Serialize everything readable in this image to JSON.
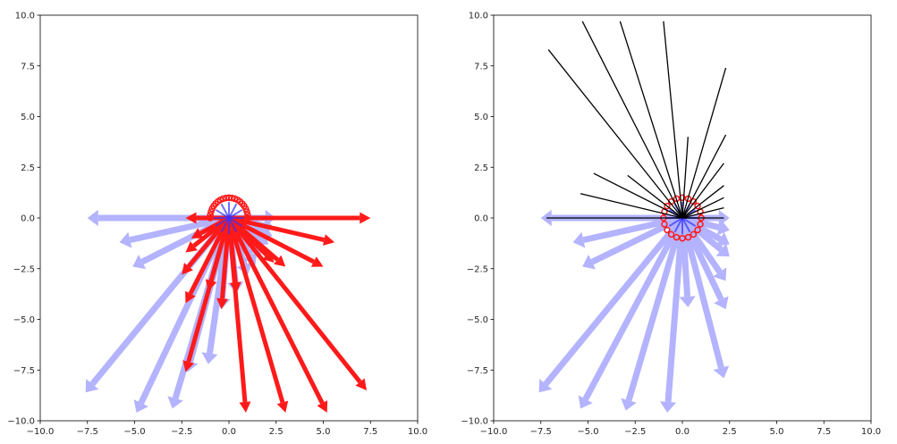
{
  "chart_data": [
    {
      "type": "quiver",
      "panel": "left",
      "xlim": [
        -10,
        10
      ],
      "ylim": [
        -10,
        10
      ],
      "xticks": [
        "−10.0",
        "−7.5",
        "−5.0",
        "−2.5",
        "0.0",
        "2.5",
        "5.0",
        "7.5",
        "10.0"
      ],
      "yticks": [
        "−10.0",
        "−7.5",
        "−5.0",
        "−2.5",
        "0.0",
        "2.5",
        "5.0",
        "7.5",
        "10.0"
      ],
      "grid": false,
      "series": [
        {
          "color": "#b3b3ff",
          "origins": [
            0,
            0
          ],
          "vectors": [
            [
              2.5,
              0.0
            ],
            [
              2.4,
              -0.5
            ],
            [
              2.3,
              -0.9
            ],
            [
              2.1,
              -1.3
            ],
            [
              1.7,
              -1.8
            ],
            [
              1.4,
              -2.3
            ],
            [
              1.0,
              -2.8
            ],
            [
              0.4,
              -3.7
            ],
            [
              -0.4,
              -4.5
            ],
            [
              -1.1,
              -7.2
            ],
            [
              -2.2,
              -7.6
            ],
            [
              -3.0,
              -9.4
            ],
            [
              -4.9,
              -9.6
            ],
            [
              -7.6,
              -8.6
            ],
            [
              -5.1,
              -2.4
            ],
            [
              -5.8,
              -1.2
            ],
            [
              -7.5,
              0.0
            ]
          ]
        },
        {
          "color": "#ff1a1a",
          "circle_markers": {
            "center": [
              0,
              0
            ],
            "radius": 1.0
          },
          "vectors": [
            [
              7.5,
              0.0
            ],
            [
              5.6,
              -1.2
            ],
            [
              5.0,
              -2.4
            ],
            [
              3.0,
              -2.4
            ],
            [
              2.4,
              -2.2
            ],
            [
              7.3,
              -8.5
            ],
            [
              5.2,
              -9.6
            ],
            [
              3.0,
              -9.6
            ],
            [
              0.9,
              -9.6
            ],
            [
              0.4,
              -3.7
            ],
            [
              -0.4,
              -4.5
            ],
            [
              -1.1,
              -3.6
            ],
            [
              -2.3,
              -7.6
            ],
            [
              -2.3,
              -4.2
            ],
            [
              -2.5,
              -2.8
            ],
            [
              -2.3,
              -1.7
            ],
            [
              -2.0,
              -1.0
            ],
            [
              -2.3,
              0.0
            ]
          ]
        }
      ]
    },
    {
      "type": "quiver",
      "panel": "right",
      "xlim": [
        -10,
        10
      ],
      "ylim": [
        -10,
        10
      ],
      "xticks": [
        "−10.0",
        "−7.5",
        "−5.0",
        "−2.5",
        "0.0",
        "2.5",
        "5.0",
        "7.5",
        "10.0"
      ],
      "yticks": [
        "−10.0",
        "−7.5",
        "−5.0",
        "−2.5",
        "0.0",
        "2.5",
        "5.0",
        "7.5",
        "10.0"
      ],
      "grid": false,
      "series": [
        {
          "color": "#b3b3ff",
          "vectors": [
            [
              2.5,
              0.0
            ],
            [
              2.5,
              -0.6
            ],
            [
              2.5,
              -1.3
            ],
            [
              2.5,
              -1.9
            ],
            [
              2.3,
              -3.1
            ],
            [
              2.3,
              -4.5
            ],
            [
              2.2,
              -7.9
            ],
            [
              0.3,
              -4.4
            ],
            [
              -0.8,
              -9.6
            ],
            [
              -3.0,
              -9.5
            ],
            [
              -5.4,
              -9.4
            ],
            [
              -7.6,
              -8.6
            ],
            [
              -5.3,
              -2.4
            ],
            [
              -5.8,
              -1.2
            ],
            [
              -7.5,
              0.0
            ]
          ]
        },
        {
          "color": "#ff1a1a",
          "circle_markers": {
            "center": [
              0,
              0
            ],
            "radius": 1.0
          }
        },
        {
          "color": "#000000",
          "style": "lines",
          "segments_from_origin": [
            [
              2.2,
              0.0
            ],
            [
              2.2,
              0.5
            ],
            [
              2.2,
              1.0
            ],
            [
              2.2,
              1.6
            ],
            [
              2.2,
              2.7
            ],
            [
              2.3,
              4.1
            ],
            [
              2.3,
              7.4
            ],
            [
              0.3,
              4.0
            ],
            [
              -1.0,
              9.7
            ],
            [
              -3.3,
              9.7
            ],
            [
              -5.3,
              9.7
            ],
            [
              -7.1,
              8.3
            ],
            [
              -4.7,
              2.2
            ],
            [
              -5.4,
              1.2
            ],
            [
              -2.9,
              2.1
            ],
            [
              -7.2,
              0.0
            ]
          ]
        }
      ]
    }
  ]
}
